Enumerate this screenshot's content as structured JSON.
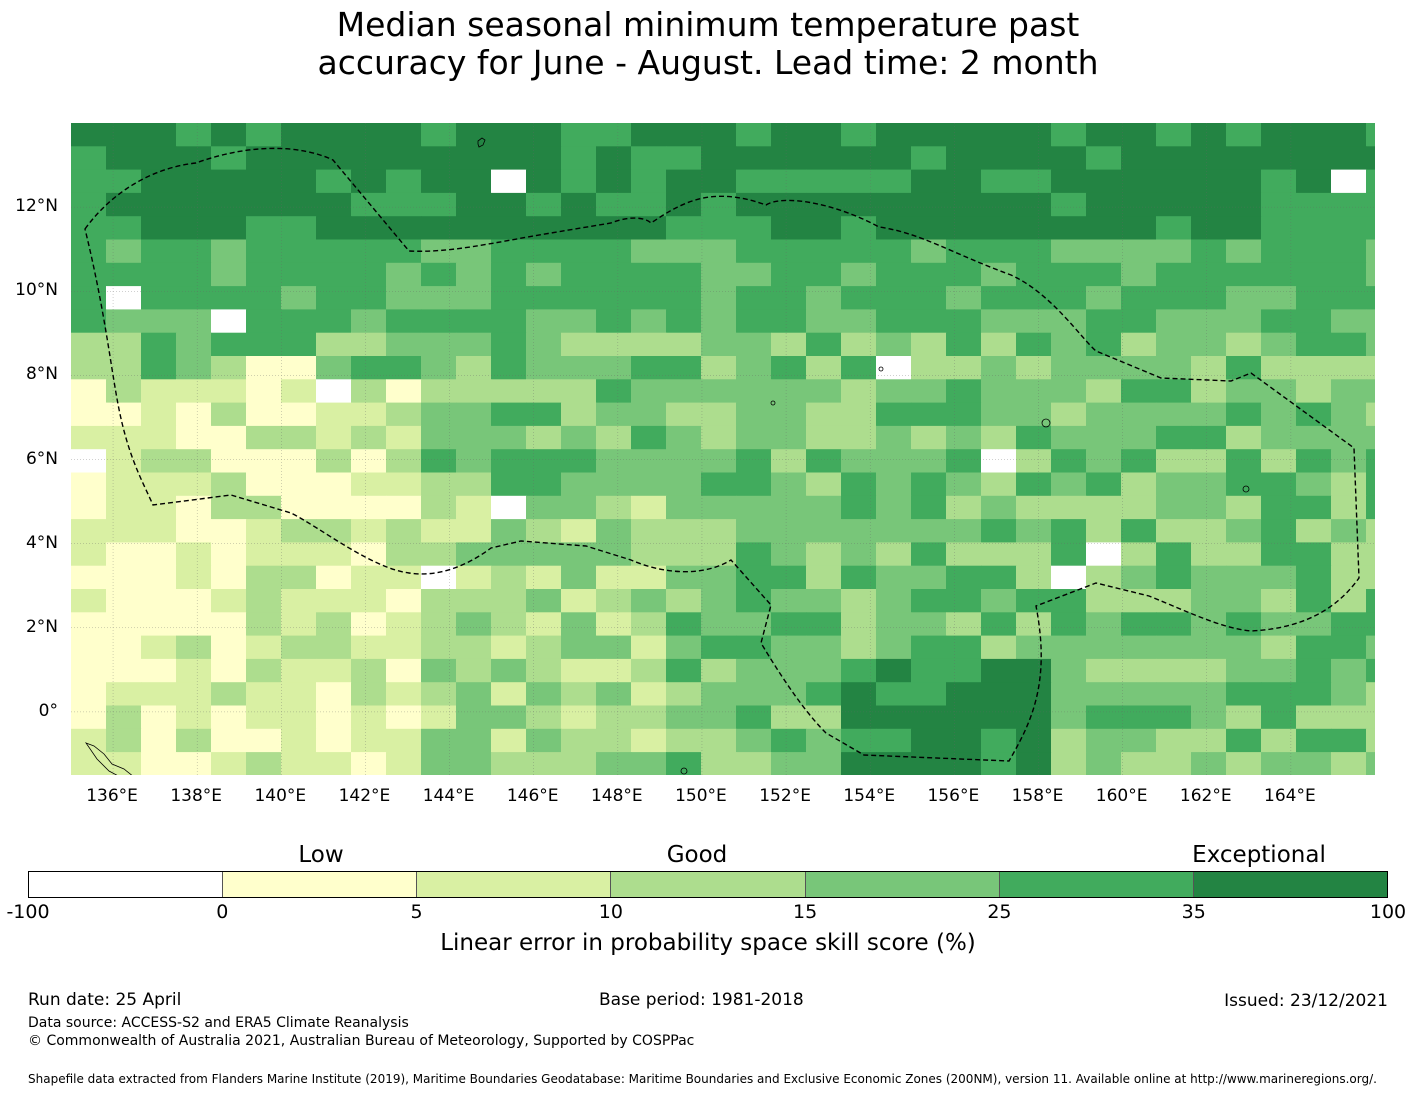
{
  "title_line1": "Median seasonal minimum temperature past",
  "title_line2": "accuracy for June - August. Lead time: 2 month",
  "map": {
    "lon_range": [
      135,
      166
    ],
    "lat_range": [
      -1.5,
      14
    ],
    "grid_cell_deg": 0.83,
    "x_ticks": [
      "136°E",
      "138°E",
      "140°E",
      "142°E",
      "144°E",
      "146°E",
      "148°E",
      "150°E",
      "152°E",
      "154°E",
      "156°E",
      "158°E",
      "160°E",
      "162°E",
      "164°E"
    ],
    "y_ticks": [
      "12°N",
      "10°N",
      "8°N",
      "6°N",
      "4°N",
      "2°N",
      "0°"
    ],
    "boundary_style": "dashed",
    "skill_regions": [
      {
        "category": "Exceptional",
        "lon": [
          135,
          166
        ],
        "lat": [
          11,
          14
        ]
      },
      {
        "category": "Exceptional",
        "lon": [
          153.5,
          158
        ],
        "lat": [
          -1.5,
          1.5
        ]
      },
      {
        "category": "Low",
        "lon": [
          135,
          137.5
        ],
        "lat": [
          -0.5,
          3.5
        ]
      },
      {
        "category": "Low",
        "lon": [
          139,
          141
        ],
        "lat": [
          7,
          8.2
        ]
      }
    ]
  },
  "legend": {
    "categories": [
      "Low",
      "Good",
      "Exceptional"
    ],
    "ticks": [
      "-100",
      "0",
      "5",
      "10",
      "15",
      "25",
      "35",
      "100"
    ],
    "colors": [
      "#ffffff",
      "#ffffcc",
      "#d9f0a3",
      "#addd8e",
      "#78c679",
      "#41ab5d",
      "#238443"
    ],
    "label": "Linear error in probability space skill score (%)"
  },
  "footer": {
    "run_date": "Run date: 25 April",
    "base_period": "Base period: 1981-2018",
    "issued": "Issued: 23/12/2021",
    "data_source": "Data source: ACCESS-S2 and ERA5 Climate Reanalysis",
    "copyright": "© Commonwealth of Australia 2021, Australian Bureau of Meteorology, Supported by COSPPac",
    "shapefile": "Shapefile data extracted from Flanders Marine Institute (2019), Maritime Boundaries Geodatabase: Maritime Boundaries and Exclusive Economic Zones (200NM), version 11. Available online at http://www.marineregions.org/."
  }
}
